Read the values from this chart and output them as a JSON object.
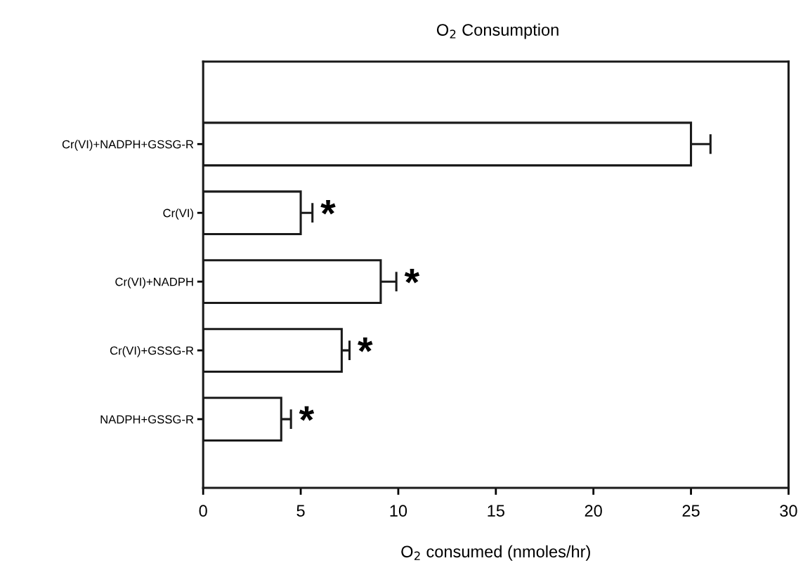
{
  "chart_data": {
    "type": "bar",
    "orientation": "horizontal",
    "title": "O$_{2}$ Consumption",
    "xlabel": "O$_{2}$ consumed (nmoles/hr)",
    "categories": [
      "Cr(VI)+NADPH+GSSG-R",
      "Cr(VI)",
      "Cr(VI)+NADPH",
      "Cr(VI)+GSSG-R",
      "NADPH+GSSG-R"
    ],
    "values": [
      25,
      5,
      9.1,
      7.1,
      4
    ],
    "errors": [
      1,
      0.6,
      0.8,
      0.4,
      0.5
    ],
    "color": "#ffffff",
    "xlim": [
      0,
      30
    ],
    "xticks": [
      0,
      5,
      10,
      15,
      20,
      25,
      30
    ],
    "grid": false,
    "legend": false,
    "annotations": [
      {
        "text": "*",
        "x": 5.6,
        "y": "Cr(VI)"
      },
      {
        "text": "*",
        "x": 9.9,
        "y": "Cr(VI)+NADPH"
      },
      {
        "text": "*",
        "x": 7.5,
        "y": "Cr(VI)+GSSG-R"
      },
      {
        "text": "*",
        "x": 4.5,
        "y": "NADPH+GSSG-R"
      }
    ]
  }
}
